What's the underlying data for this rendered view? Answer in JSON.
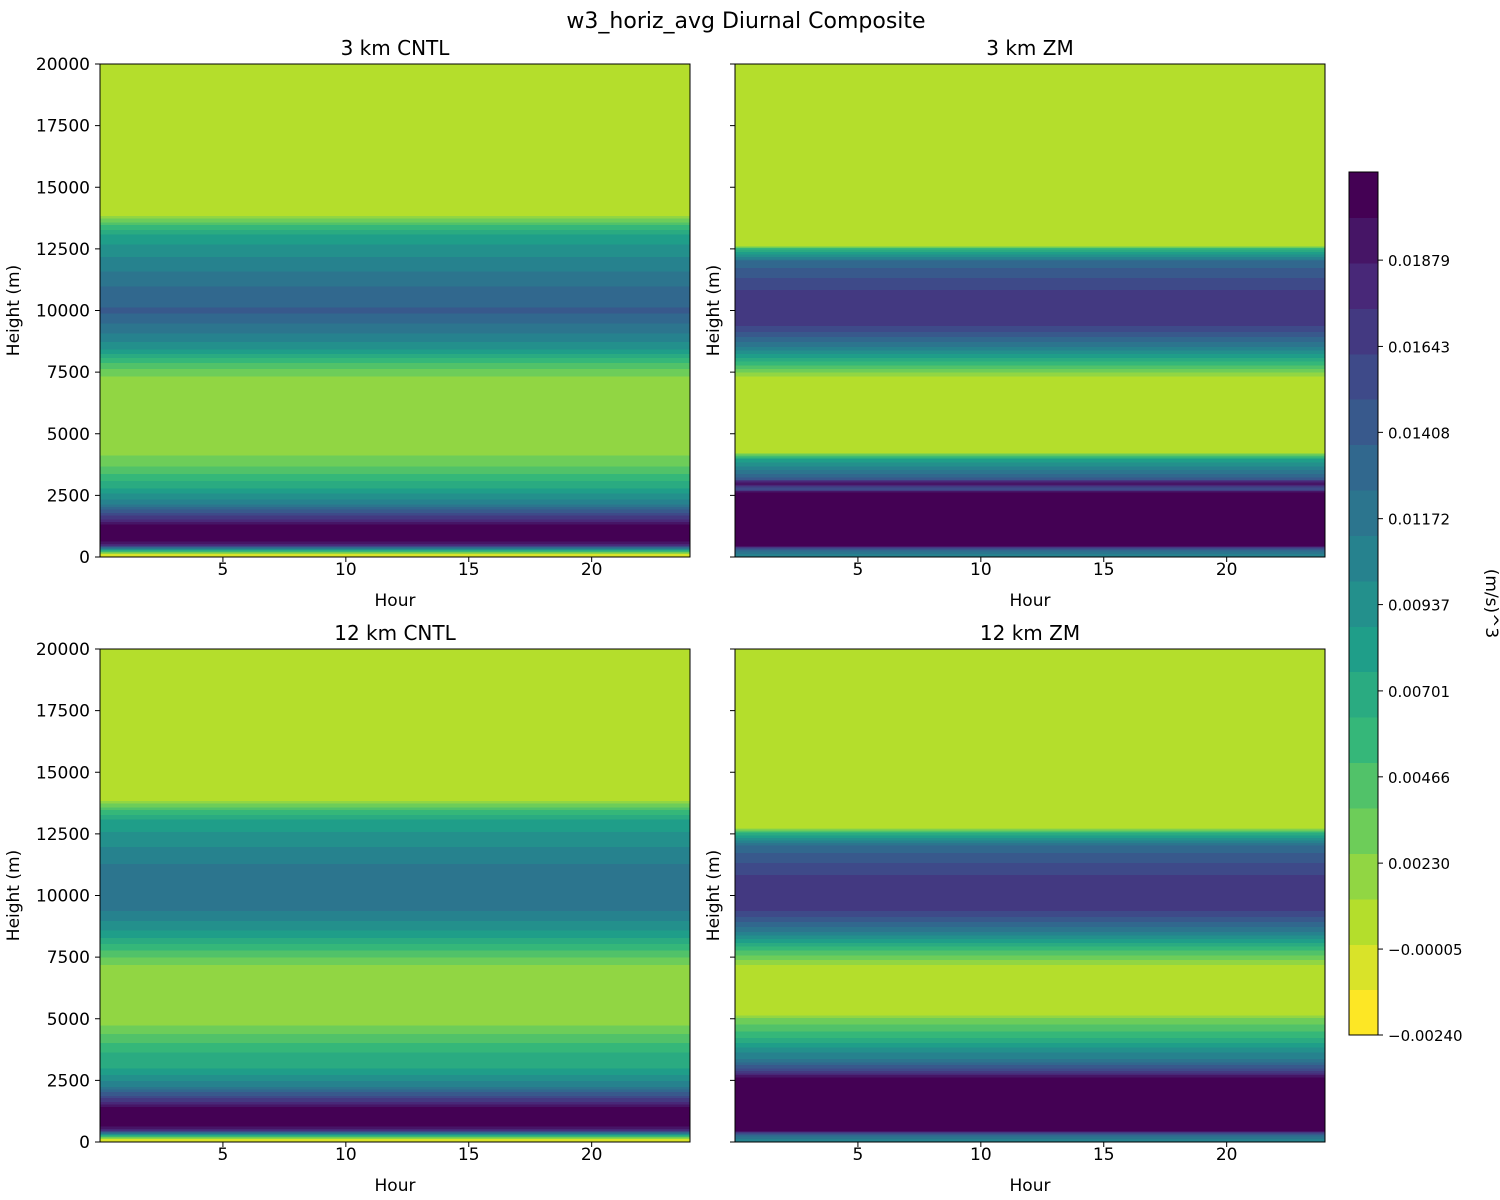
{
  "suptitle": "w3_horiz_avg Diurnal Composite",
  "colormap": "viridis_r",
  "colorbar": {
    "label": "(m/s)^3",
    "levels": [
      -0.0024,
      -5e-05,
      0.0023,
      0.00466,
      0.00701,
      0.00937,
      0.01172,
      0.01408,
      0.01643,
      0.01879
    ],
    "tick_labels": [
      "−0.00240",
      "−0.00005",
      "0.00230",
      "0.00466",
      "0.00701",
      "0.00937",
      "0.01172",
      "0.01408",
      "0.01643",
      "0.01879"
    ],
    "vmin": -0.0024,
    "vmax": 0.0212,
    "band_count": 19
  },
  "chart_data": [
    {
      "type": "heatmap",
      "title": "3 km CNTL",
      "xlabel": "Hour",
      "ylabel": "Height (m)",
      "xlim": [
        0,
        24
      ],
      "ylim": [
        0,
        20000
      ],
      "xticks": [
        5,
        10,
        15,
        20
      ],
      "yticks": [
        0,
        2500,
        5000,
        7500,
        10000,
        12500,
        15000,
        17500,
        20000
      ],
      "show_yticklabels": true,
      "profile": [
        {
          "height": 0,
          "value": -0.002
        },
        {
          "height": 150,
          "value": 0.0005
        },
        {
          "height": 300,
          "value": 0.008
        },
        {
          "height": 500,
          "value": 0.018
        },
        {
          "height": 700,
          "value": 0.0205
        },
        {
          "height": 1300,
          "value": 0.0205
        },
        {
          "height": 1700,
          "value": 0.016
        },
        {
          "height": 2200,
          "value": 0.011
        },
        {
          "height": 2800,
          "value": 0.0075
        },
        {
          "height": 3300,
          "value": 0.0055
        },
        {
          "height": 3800,
          "value": 0.0035
        },
        {
          "height": 4400,
          "value": 0.0018
        },
        {
          "height": 7200,
          "value": 0.0018
        },
        {
          "height": 7800,
          "value": 0.0045
        },
        {
          "height": 8500,
          "value": 0.009
        },
        {
          "height": 9300,
          "value": 0.012
        },
        {
          "height": 10000,
          "value": 0.014
        },
        {
          "height": 11000,
          "value": 0.0125
        },
        {
          "height": 12000,
          "value": 0.0105
        },
        {
          "height": 13000,
          "value": 0.008
        },
        {
          "height": 13500,
          "value": 0.005
        },
        {
          "height": 14000,
          "value": 0.0001
        },
        {
          "height": 20000,
          "value": 0.0001
        }
      ]
    },
    {
      "type": "heatmap",
      "title": "3 km ZM",
      "xlabel": "Hour",
      "ylabel": "Height (m)",
      "xlim": [
        0,
        24
      ],
      "ylim": [
        0,
        20000
      ],
      "xticks": [
        5,
        10,
        15,
        20
      ],
      "yticks": [
        0,
        2500,
        5000,
        7500,
        10000,
        12500,
        15000,
        17500,
        20000
      ],
      "show_yticklabels": false,
      "profile": [
        {
          "height": 0,
          "value": 0.01
        },
        {
          "height": 300,
          "value": 0.013
        },
        {
          "height": 500,
          "value": 0.021
        },
        {
          "height": 2600,
          "value": 0.021
        },
        {
          "height": 2800,
          "value": 0.015
        },
        {
          "height": 3000,
          "value": 0.02
        },
        {
          "height": 3200,
          "value": 0.014
        },
        {
          "height": 3600,
          "value": 0.011
        },
        {
          "height": 4000,
          "value": 0.0075
        },
        {
          "height": 4300,
          "value": 0.0001
        },
        {
          "height": 7200,
          "value": 0.0001
        },
        {
          "height": 7800,
          "value": 0.005
        },
        {
          "height": 8500,
          "value": 0.011
        },
        {
          "height": 9300,
          "value": 0.016
        },
        {
          "height": 10000,
          "value": 0.0175
        },
        {
          "height": 11000,
          "value": 0.016
        },
        {
          "height": 12000,
          "value": 0.013
        },
        {
          "height": 12500,
          "value": 0.006
        },
        {
          "height": 12700,
          "value": 0.0001
        },
        {
          "height": 20000,
          "value": 0.0001
        }
      ]
    },
    {
      "type": "heatmap",
      "title": "12 km CNTL",
      "xlabel": "Hour",
      "ylabel": "Height (m)",
      "xlim": [
        0,
        24
      ],
      "ylim": [
        0,
        20000
      ],
      "xticks": [
        5,
        10,
        15,
        20
      ],
      "yticks": [
        0,
        2500,
        5000,
        7500,
        10000,
        12500,
        15000,
        17500,
        20000
      ],
      "show_yticklabels": true,
      "profile": [
        {
          "height": 0,
          "value": -0.002
        },
        {
          "height": 150,
          "value": 0.0005
        },
        {
          "height": 300,
          "value": 0.008
        },
        {
          "height": 500,
          "value": 0.018
        },
        {
          "height": 700,
          "value": 0.0205
        },
        {
          "height": 1400,
          "value": 0.0205
        },
        {
          "height": 1800,
          "value": 0.016
        },
        {
          "height": 2300,
          "value": 0.011
        },
        {
          "height": 3000,
          "value": 0.0075
        },
        {
          "height": 3800,
          "value": 0.006
        },
        {
          "height": 4500,
          "value": 0.0035
        },
        {
          "height": 5000,
          "value": 0.0018
        },
        {
          "height": 7000,
          "value": 0.0018
        },
        {
          "height": 7800,
          "value": 0.005
        },
        {
          "height": 8500,
          "value": 0.0085
        },
        {
          "height": 9300,
          "value": 0.011
        },
        {
          "height": 10000,
          "value": 0.0125
        },
        {
          "height": 11000,
          "value": 0.0118
        },
        {
          "height": 12000,
          "value": 0.01
        },
        {
          "height": 13000,
          "value": 0.008
        },
        {
          "height": 13500,
          "value": 0.005
        },
        {
          "height": 14000,
          "value": 0.0001
        },
        {
          "height": 20000,
          "value": 0.0001
        }
      ]
    },
    {
      "type": "heatmap",
      "title": "12 km ZM",
      "xlabel": "Hour",
      "ylabel": "Height (m)",
      "xlim": [
        0,
        24
      ],
      "ylim": [
        0,
        20000
      ],
      "xticks": [
        5,
        10,
        15,
        20
      ],
      "yticks": [
        0,
        2500,
        5000,
        7500,
        10000,
        12500,
        15000,
        17500,
        20000
      ],
      "show_yticklabels": false,
      "profile": [
        {
          "height": 0,
          "value": 0.01
        },
        {
          "height": 300,
          "value": 0.013
        },
        {
          "height": 500,
          "value": 0.021
        },
        {
          "height": 2600,
          "value": 0.021
        },
        {
          "height": 2900,
          "value": 0.016
        },
        {
          "height": 3300,
          "value": 0.012
        },
        {
          "height": 3800,
          "value": 0.009
        },
        {
          "height": 4300,
          "value": 0.006
        },
        {
          "height": 5000,
          "value": 0.003
        },
        {
          "height": 5300,
          "value": 0.0001
        },
        {
          "height": 7000,
          "value": 0.0001
        },
        {
          "height": 7800,
          "value": 0.005
        },
        {
          "height": 8500,
          "value": 0.011
        },
        {
          "height": 9300,
          "value": 0.016
        },
        {
          "height": 10000,
          "value": 0.0175
        },
        {
          "height": 11000,
          "value": 0.016
        },
        {
          "height": 12000,
          "value": 0.013
        },
        {
          "height": 12500,
          "value": 0.007
        },
        {
          "height": 12800,
          "value": 0.0001
        },
        {
          "height": 20000,
          "value": 0.0001
        }
      ]
    }
  ]
}
